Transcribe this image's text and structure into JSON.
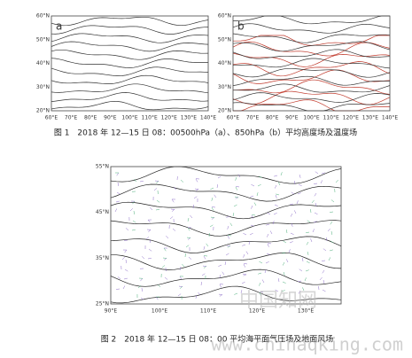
{
  "figure1": {
    "panels": [
      {
        "label": "a",
        "lat_labels": [
          "60°N",
          "50°N",
          "40°N",
          "30°N",
          "20°N"
        ],
        "lon_labels": [
          "60°E",
          "70°E",
          "80°E",
          "90°E",
          "100°E",
          "110°E",
          "120°E",
          "130°E",
          "140°E"
        ]
      },
      {
        "label": "b",
        "lat_labels": [
          "60°N",
          "50°N",
          "40°N",
          "30°N",
          "20°N"
        ],
        "lon_labels": [
          "60°E",
          "70°E",
          "80°E",
          "90°E",
          "100°E",
          "110°E",
          "120°E",
          "130°E",
          "140°E"
        ]
      }
    ],
    "caption": "图 1　2018 年 12—15 日 08：00500hPa（a）、850hPa（b）平均高度场及温度场"
  },
  "figure2": {
    "lat_labels": [
      "55°N",
      "45°N",
      "35°N",
      "25°N"
    ],
    "lon_labels": [
      "90°E",
      "100°E",
      "110°E",
      "120°E",
      "130°E"
    ],
    "caption": "图 2　2018 年 12—15 日 08：00 平均海平面气压场及地面风场"
  },
  "watermark": {
    "logo": "中国知网",
    "url": "www.chinaqking.com"
  }
}
